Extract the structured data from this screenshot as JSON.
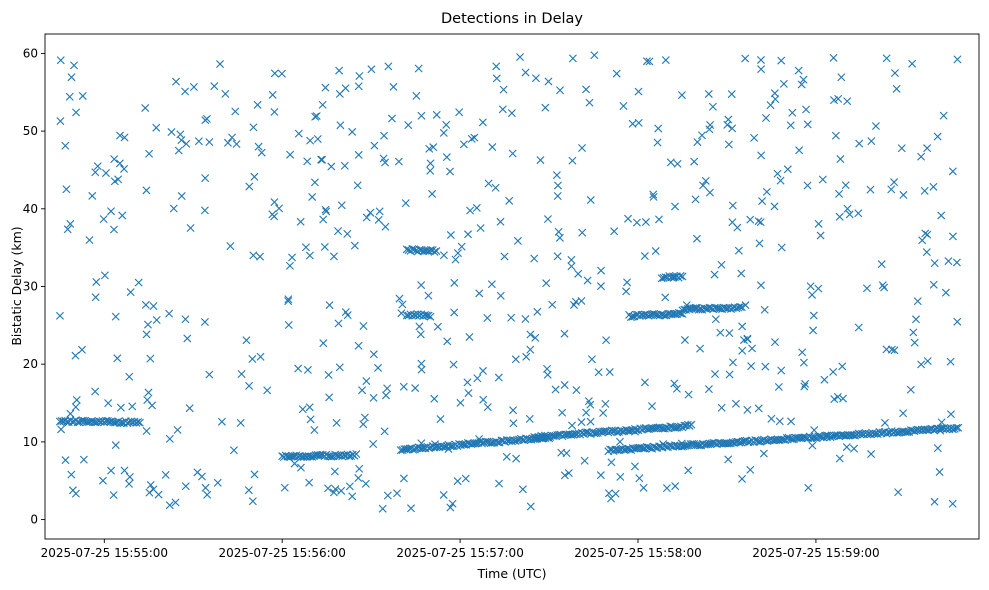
{
  "chart_data": {
    "type": "scatter",
    "title": "Detections in Delay",
    "xlabel": "Time (UTC)",
    "ylabel": "Bistatic Delay (km)",
    "marker": "x",
    "color": "#1f77b4",
    "grid": false,
    "legend": "none",
    "xlim": [
      "2025-07-25 15:54:40",
      "2025-07-25 15:59:55"
    ],
    "ylim": [
      -2.5,
      62.5
    ],
    "x_ticks": [
      "2025-07-25 15:55:00",
      "2025-07-25 15:56:00",
      "2025-07-25 15:57:00",
      "2025-07-25 15:58:00",
      "2025-07-25 15:59:00"
    ],
    "y_ticks": [
      0,
      10,
      20,
      30,
      40,
      50,
      60
    ],
    "time_range": [
      "2025-07-25 15:54:45",
      "2025-07-25 15:59:48"
    ],
    "tracks": [
      {
        "from": [
          "2025-07-25 15:54:45",
          12.7
        ],
        "to": [
          "2025-07-25 15:55:12",
          12.5
        ]
      },
      {
        "from": [
          "2025-07-25 15:56:00",
          8.1
        ],
        "to": [
          "2025-07-25 15:56:25",
          8.3
        ]
      },
      {
        "from": [
          "2025-07-25 15:56:40",
          9.0
        ],
        "to": [
          "2025-07-25 15:57:30",
          10.6
        ]
      },
      {
        "from": [
          "2025-07-25 15:57:25",
          10.6
        ],
        "to": [
          "2025-07-25 15:58:18",
          12.1
        ]
      },
      {
        "from": [
          "2025-07-25 15:57:50",
          8.9
        ],
        "to": [
          "2025-07-25 15:59:48",
          11.8
        ]
      },
      {
        "from": [
          "2025-07-25 15:56:42",
          34.7
        ],
        "to": [
          "2025-07-25 15:56:52",
          34.6
        ]
      },
      {
        "from": [
          "2025-07-25 15:56:42",
          26.4
        ],
        "to": [
          "2025-07-25 15:56:50",
          26.2
        ]
      },
      {
        "from": [
          "2025-07-25 15:57:57",
          26.2
        ],
        "to": [
          "2025-07-25 15:58:15",
          26.5
        ]
      },
      {
        "from": [
          "2025-07-25 15:58:15",
          27.0
        ],
        "to": [
          "2025-07-25 15:58:35",
          27.3
        ]
      },
      {
        "from": [
          "2025-07-25 15:58:08",
          31.2
        ],
        "to": [
          "2025-07-25 15:58:15",
          31.3
        ]
      }
    ]
  }
}
